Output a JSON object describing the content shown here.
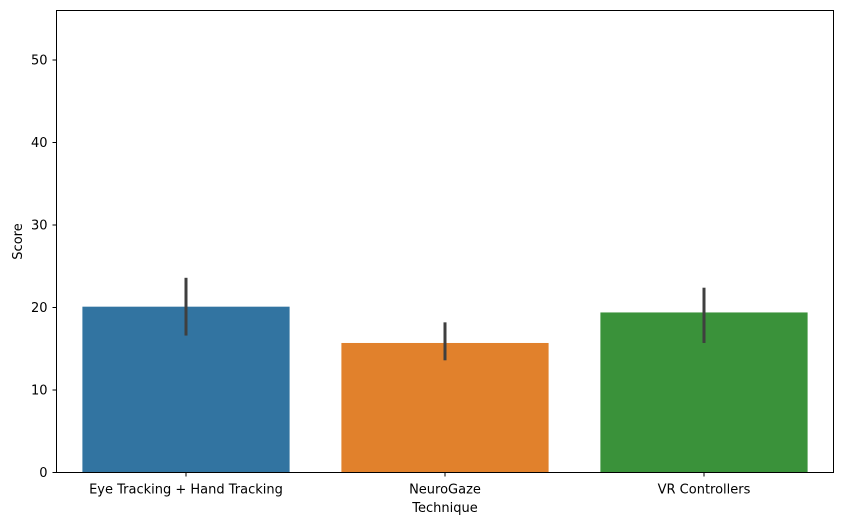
{
  "chart_data": {
    "type": "bar",
    "xlabel": "Technique",
    "ylabel": "Score",
    "categories": [
      "Eye Tracking + Hand Tracking",
      "NeuroGaze",
      "VR Controllers"
    ],
    "values": [
      20.1,
      15.7,
      19.4
    ],
    "error_low": [
      16.6,
      13.6,
      15.7
    ],
    "error_high": [
      23.6,
      18.2,
      22.4
    ],
    "ylim": [
      0,
      56
    ],
    "yticks": [
      0,
      10,
      20,
      30,
      40,
      50
    ],
    "colors": [
      "#3274a1",
      "#e1812c",
      "#3a923a"
    ],
    "error_color": "#3f3f3f",
    "grid": false,
    "legend": "none"
  }
}
